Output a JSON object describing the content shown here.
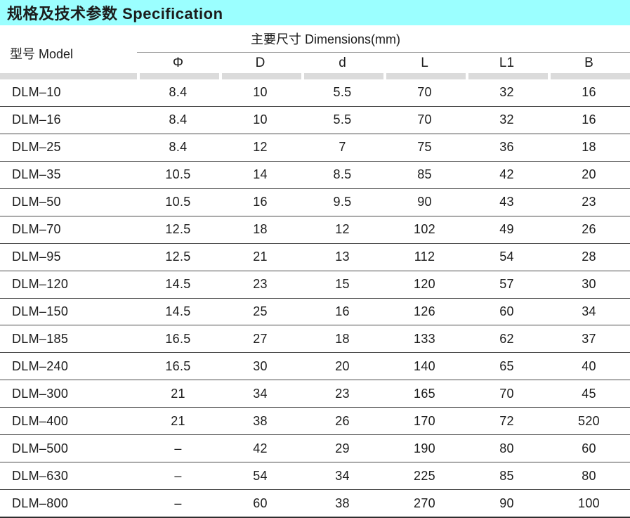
{
  "title": "规格及技术参数  Specification",
  "header": {
    "model": "型号 Model",
    "dimensions_group": "主要尺寸  Dimensions(mm)",
    "columns": [
      "Φ",
      "D",
      "d",
      "L",
      "L1",
      "B"
    ]
  },
  "rows": [
    {
      "model": "DLM–10",
      "values": [
        "8.4",
        "10",
        "5.5",
        "70",
        "32",
        "16"
      ]
    },
    {
      "model": "DLM–16",
      "values": [
        "8.4",
        "10",
        "5.5",
        "70",
        "32",
        "16"
      ]
    },
    {
      "model": "DLM–25",
      "values": [
        "8.4",
        "12",
        "7",
        "75",
        "36",
        "18"
      ]
    },
    {
      "model": "DLM–35",
      "values": [
        "10.5",
        "14",
        "8.5",
        "85",
        "42",
        "20"
      ]
    },
    {
      "model": "DLM–50",
      "values": [
        "10.5",
        "16",
        "9.5",
        "90",
        "43",
        "23"
      ]
    },
    {
      "model": "DLM–70",
      "values": [
        "12.5",
        "18",
        "12",
        "102",
        "49",
        "26"
      ]
    },
    {
      "model": "DLM–95",
      "values": [
        "12.5",
        "21",
        "13",
        "112",
        "54",
        "28"
      ]
    },
    {
      "model": "DLM–120",
      "values": [
        "14.5",
        "23",
        "15",
        "120",
        "57",
        "30"
      ]
    },
    {
      "model": "DLM–150",
      "values": [
        "14.5",
        "25",
        "16",
        "126",
        "60",
        "34"
      ]
    },
    {
      "model": "DLM–185",
      "values": [
        "16.5",
        "27",
        "18",
        "133",
        "62",
        "37"
      ]
    },
    {
      "model": "DLM–240",
      "values": [
        "16.5",
        "30",
        "20",
        "140",
        "65",
        "40"
      ]
    },
    {
      "model": "DLM–300",
      "values": [
        "21",
        "34",
        "23",
        "165",
        "70",
        "45"
      ]
    },
    {
      "model": "DLM–400",
      "values": [
        "21",
        "38",
        "26",
        "170",
        "72",
        "520"
      ]
    },
    {
      "model": "DLM–500",
      "values": [
        "–",
        "42",
        "29",
        "190",
        "80",
        "60"
      ]
    },
    {
      "model": "DLM–630",
      "values": [
        "–",
        "54",
        "34",
        "225",
        "85",
        "80"
      ]
    },
    {
      "model": "DLM–800",
      "values": [
        "–",
        "60",
        "38",
        "270",
        "90",
        "100"
      ]
    }
  ],
  "colors": {
    "title_bg": "#9BFFFF",
    "separator_band": "#DBDBDB",
    "row_line": "#4a4a4a",
    "text": "#1c1c1c"
  }
}
